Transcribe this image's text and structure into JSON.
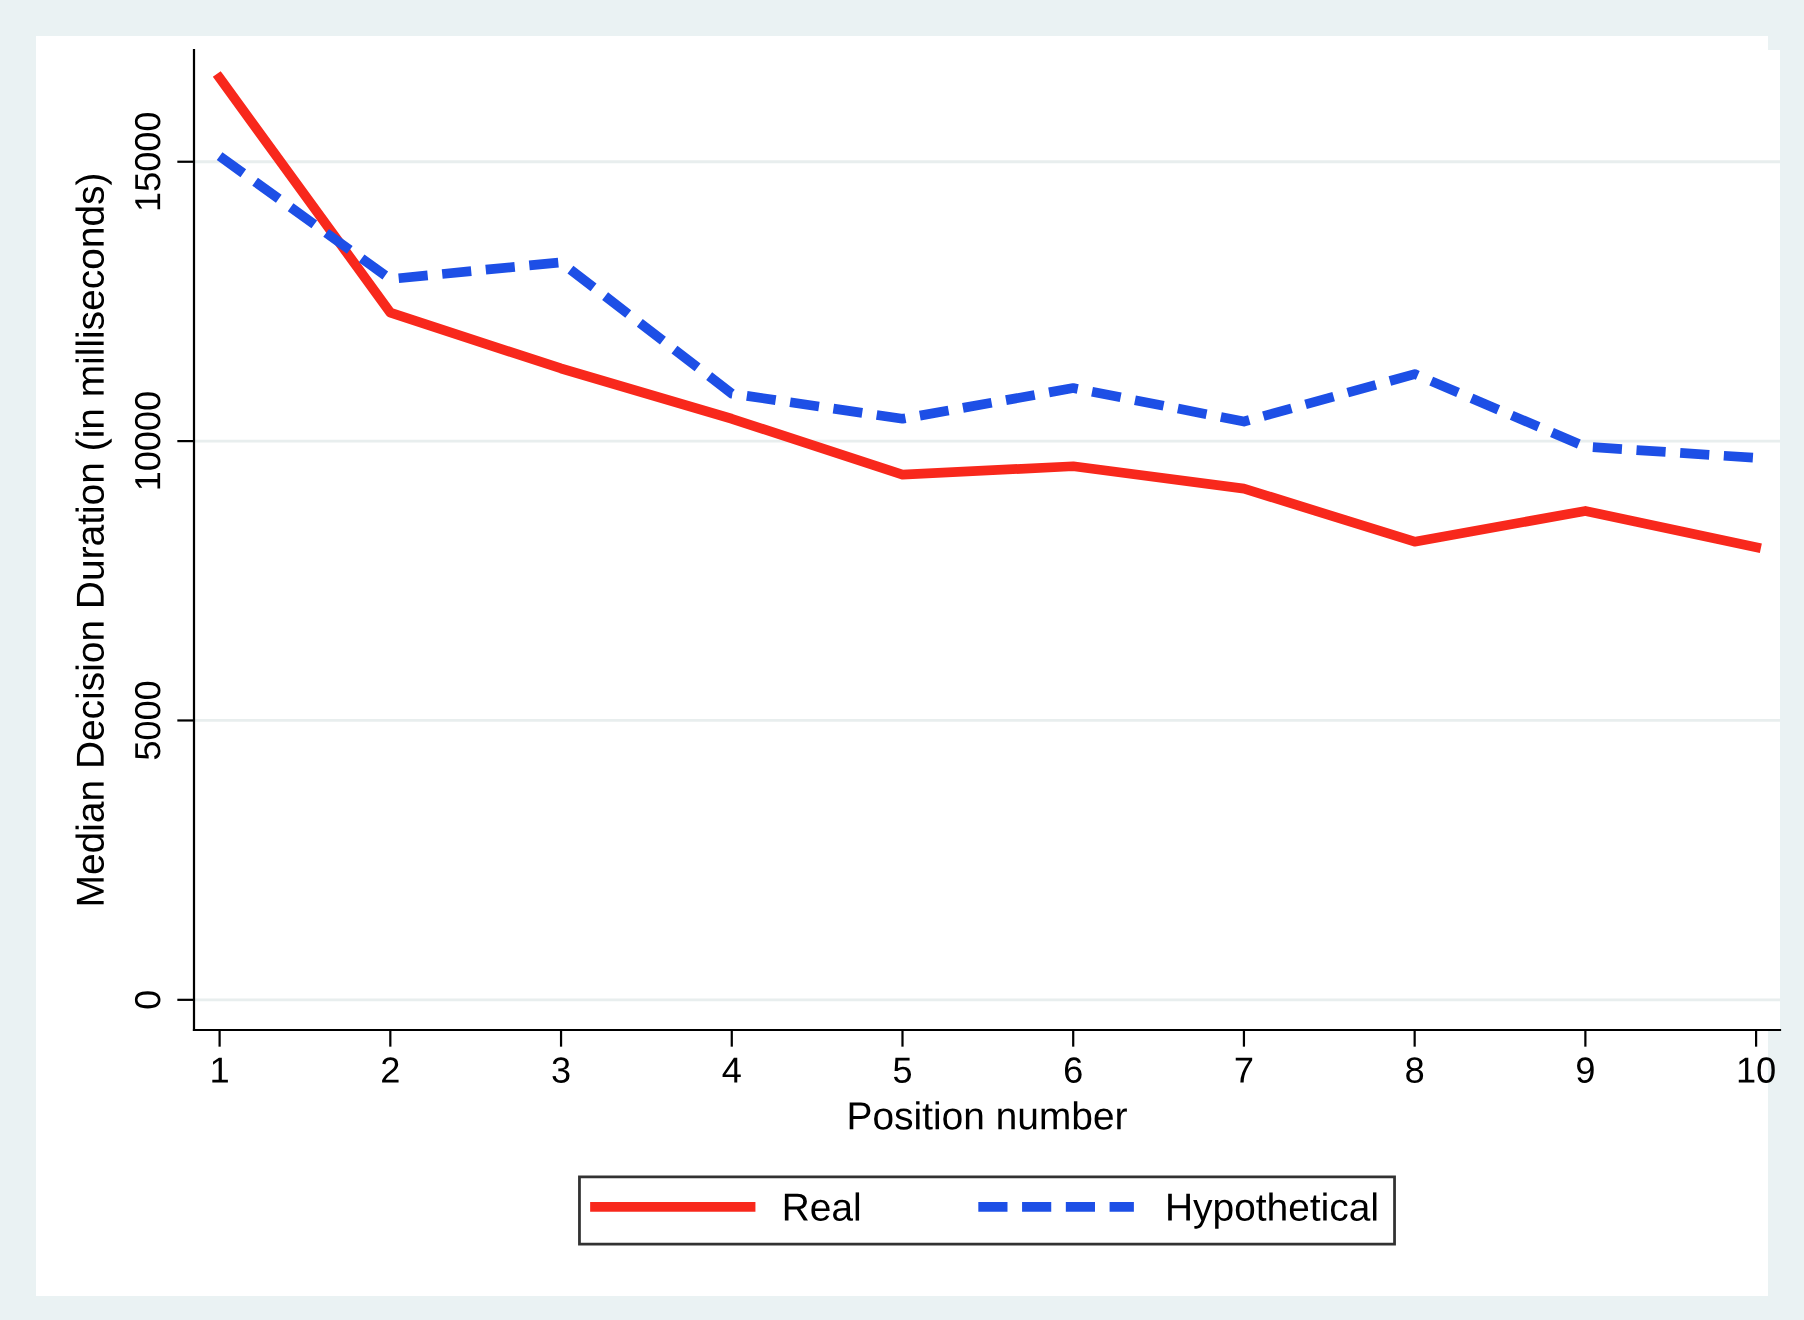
{
  "chart_data": {
    "type": "line",
    "xlabel": "Position number",
    "ylabel": "Median Decision Duration (in milliseconds)",
    "x": [
      1,
      2,
      3,
      4,
      5,
      6,
      7,
      8,
      9,
      10
    ],
    "series": [
      {
        "name": "Real",
        "color": "#f8281c",
        "line_style": "solid",
        "values": [
          16500,
          12300,
          11300,
          10400,
          9400,
          9550,
          9150,
          8200,
          8750,
          8100
        ]
      },
      {
        "name": "Hypothetical",
        "color": "#1d4fe6",
        "line_style": "dashed",
        "values": [
          15100,
          12900,
          13200,
          10850,
          10400,
          10950,
          10350,
          11200,
          9900,
          9700
        ]
      }
    ],
    "xlim": [
      0.85,
      10.14
    ],
    "ylim": [
      -540,
      17000
    ],
    "xticks": [
      1,
      2,
      3,
      4,
      5,
      6,
      7,
      8,
      9,
      10
    ],
    "yticks": [
      0,
      5000,
      10000,
      15000
    ],
    "grid": "y",
    "legend": "bottom",
    "marker": "none"
  }
}
